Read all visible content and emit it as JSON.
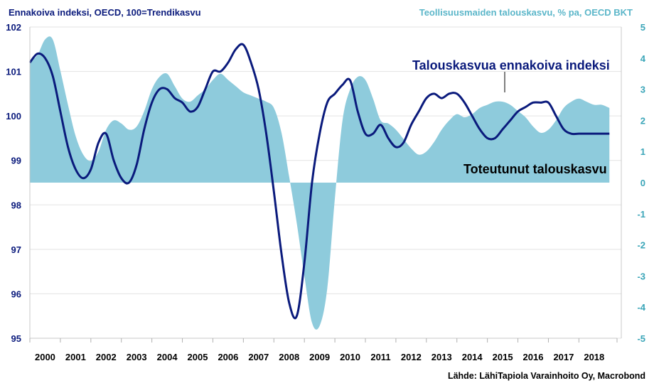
{
  "chart_data": {
    "type": "line",
    "title_left": "Ennakoiva indeksi, OECD, 100=Trendikasvu",
    "title_right": "Teollisuusmaiden talouskasvu, % pa, OECD BKT",
    "source": "Lähde: LähiTapiola Varainhoito Oy, Macrobond",
    "x_categories": [
      "2000",
      "2001",
      "2002",
      "2003",
      "2004",
      "2005",
      "2006",
      "2007",
      "2008",
      "2009",
      "2010",
      "2011",
      "2012",
      "2013",
      "2014",
      "2015",
      "2016",
      "2017",
      "2018"
    ],
    "x_range": [
      1999.5,
      2018.75
    ],
    "y_left": {
      "range": [
        95,
        102
      ],
      "ticks": [
        "95",
        "96",
        "97",
        "98",
        "99",
        "100",
        "101",
        "102"
      ]
    },
    "y_right": {
      "range": [
        -5,
        5
      ],
      "ticks": [
        "-5",
        "-4",
        "-3",
        "-2",
        "-1",
        "0",
        "1",
        "2",
        "3",
        "4",
        "5"
      ]
    },
    "grid": "horizontal",
    "series": [
      {
        "name": "Toteutunut talouskasvu",
        "type": "area",
        "axis": "right",
        "color": "#8ecbdc",
        "x": [
          1999.5,
          1999.75,
          2000.0,
          2000.25,
          2000.5,
          2000.75,
          2001.0,
          2001.25,
          2001.5,
          2001.75,
          2002.0,
          2002.25,
          2002.5,
          2002.75,
          2003.0,
          2003.25,
          2003.5,
          2003.75,
          2004.0,
          2004.25,
          2004.5,
          2004.75,
          2005.0,
          2005.25,
          2005.5,
          2005.75,
          2006.0,
          2006.25,
          2006.5,
          2006.75,
          2007.0,
          2007.25,
          2007.5,
          2007.75,
          2008.0,
          2008.25,
          2008.5,
          2008.75,
          2009.0,
          2009.25,
          2009.5,
          2009.75,
          2010.0,
          2010.25,
          2010.5,
          2010.75,
          2011.0,
          2011.25,
          2011.5,
          2011.75,
          2012.0,
          2012.25,
          2012.5,
          2012.75,
          2013.0,
          2013.25,
          2013.5,
          2013.75,
          2014.0,
          2014.25,
          2014.5,
          2014.75,
          2015.0,
          2015.25,
          2015.5,
          2015.75,
          2016.0,
          2016.25,
          2016.5,
          2016.75,
          2017.0,
          2017.25,
          2017.5,
          2017.75,
          2018.0,
          2018.25,
          2018.5
        ],
        "values": [
          3.9,
          4.1,
          4.6,
          4.6,
          3.6,
          2.5,
          1.5,
          0.9,
          0.7,
          1.0,
          1.7,
          2.0,
          1.9,
          1.7,
          1.8,
          2.3,
          3.0,
          3.4,
          3.5,
          3.1,
          2.7,
          2.6,
          2.8,
          3.0,
          3.3,
          3.5,
          3.3,
          3.1,
          2.9,
          2.8,
          2.7,
          2.6,
          2.4,
          1.6,
          0.2,
          -1.3,
          -3.0,
          -4.5,
          -4.6,
          -3.4,
          -0.5,
          2.0,
          3.0,
          3.4,
          3.3,
          2.7,
          2.0,
          1.9,
          1.7,
          1.4,
          1.1,
          0.9,
          1.0,
          1.3,
          1.7,
          2.0,
          2.2,
          2.1,
          2.2,
          2.4,
          2.5,
          2.6,
          2.6,
          2.5,
          2.3,
          2.1,
          1.8,
          1.6,
          1.7,
          2.0,
          2.4,
          2.6,
          2.7,
          2.6,
          2.5,
          2.5,
          2.4
        ]
      },
      {
        "name": "Talouskasvua ennakoiva indeksi",
        "type": "line",
        "axis": "left",
        "color": "#0a1a7c",
        "x": [
          1999.5,
          1999.75,
          2000.0,
          2000.25,
          2000.5,
          2000.75,
          2001.0,
          2001.25,
          2001.5,
          2001.75,
          2002.0,
          2002.25,
          2002.5,
          2002.75,
          2003.0,
          2003.25,
          2003.5,
          2003.75,
          2004.0,
          2004.25,
          2004.5,
          2004.75,
          2005.0,
          2005.25,
          2005.5,
          2005.75,
          2006.0,
          2006.25,
          2006.5,
          2006.75,
          2007.0,
          2007.25,
          2007.5,
          2007.75,
          2008.0,
          2008.25,
          2008.5,
          2008.75,
          2009.0,
          2009.25,
          2009.5,
          2009.75,
          2010.0,
          2010.25,
          2010.5,
          2010.75,
          2011.0,
          2011.25,
          2011.5,
          2011.75,
          2012.0,
          2012.25,
          2012.5,
          2012.75,
          2013.0,
          2013.25,
          2013.5,
          2013.75,
          2014.0,
          2014.25,
          2014.5,
          2014.75,
          2015.0,
          2015.25,
          2015.5,
          2015.75,
          2016.0,
          2016.25,
          2016.5,
          2016.75,
          2017.0,
          2017.25,
          2017.5,
          2017.75,
          2018.0,
          2018.25,
          2018.5
        ],
        "values": [
          101.2,
          101.4,
          101.3,
          100.9,
          100.1,
          99.3,
          98.8,
          98.6,
          98.8,
          99.4,
          99.6,
          99.0,
          98.6,
          98.5,
          98.9,
          99.7,
          100.3,
          100.6,
          100.6,
          100.4,
          100.3,
          100.1,
          100.2,
          100.6,
          101.0,
          101.0,
          101.2,
          101.5,
          101.6,
          101.2,
          100.6,
          99.6,
          98.3,
          96.9,
          95.8,
          95.5,
          96.7,
          98.5,
          99.6,
          100.3,
          100.5,
          100.7,
          100.8,
          100.1,
          99.6,
          99.6,
          99.8,
          99.5,
          99.3,
          99.4,
          99.8,
          100.1,
          100.4,
          100.5,
          100.4,
          100.5,
          100.5,
          100.3,
          100.0,
          99.7,
          99.5,
          99.5,
          99.7,
          99.9,
          100.1,
          100.2,
          100.3,
          100.3,
          100.3,
          100.0,
          99.7,
          99.6,
          99.6,
          99.6,
          99.6,
          99.6,
          99.6
        ]
      }
    ],
    "annotations": [
      {
        "text": "Talouskasvua ennakoiva indeksi",
        "target_series": 1,
        "target_x": 2014.5
      },
      {
        "text": "Toteutunut talouskasvu",
        "target_series": 0
      }
    ]
  }
}
